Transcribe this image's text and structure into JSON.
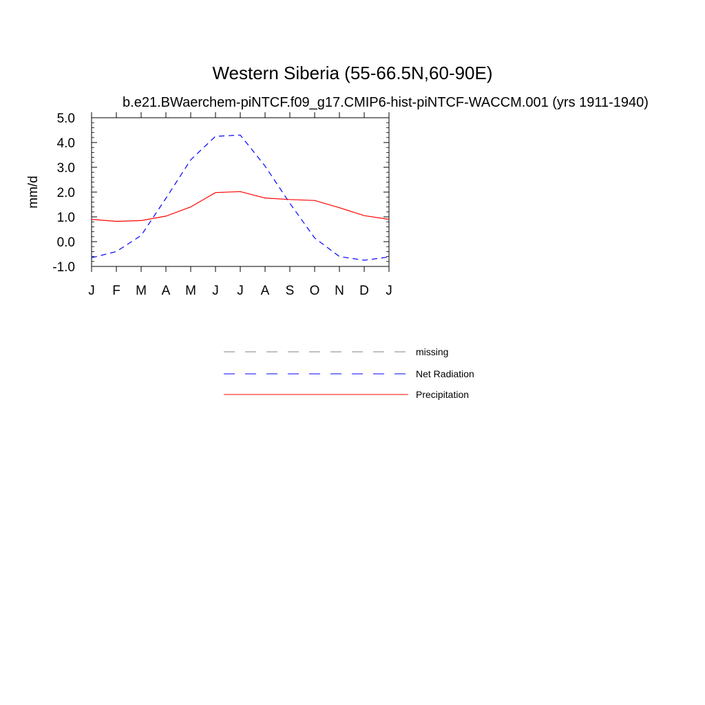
{
  "chart_data": {
    "type": "line",
    "title": "Western Siberia (55-66.5N,60-90E)",
    "subtitle": "b.e21.BWaerchem-piNTCF.f09_g17.CMIP6-hist-piNTCF-WACCM.001 (yrs 1911-1940)",
    "xlabel": "",
    "ylabel": "mm/d",
    "categories": [
      "J",
      "F",
      "M",
      "A",
      "M",
      "J",
      "J",
      "A",
      "S",
      "O",
      "N",
      "D",
      "J"
    ],
    "ylim": [
      -1.0,
      5.0
    ],
    "yticks": [
      "5.0",
      "4.0",
      "3.0",
      "2.0",
      "1.0",
      "0.0",
      "-1.0"
    ],
    "ytick_values": [
      5.0,
      4.0,
      3.0,
      2.0,
      1.0,
      0.0,
      -1.0
    ],
    "grid": false,
    "series": [
      {
        "name": "Net Radiation",
        "color": "#0000ff",
        "dash": "dashed",
        "values": [
          -0.65,
          -0.4,
          0.25,
          1.75,
          3.3,
          4.25,
          4.3,
          3.05,
          1.55,
          0.15,
          -0.6,
          -0.75,
          -0.62
        ]
      },
      {
        "name": "Precipitation",
        "color": "#ff0000",
        "dash": "solid",
        "values": [
          0.9,
          0.82,
          0.85,
          1.03,
          1.4,
          1.98,
          2.02,
          1.76,
          1.7,
          1.66,
          1.37,
          1.05,
          0.9
        ]
      }
    ],
    "legend": {
      "placement": "below",
      "entries": [
        {
          "name": "missing",
          "color": "#808080",
          "dash": "dashed"
        },
        {
          "name": "Net Radiation",
          "color": "#0000ff",
          "dash": "dashed"
        },
        {
          "name": "Precipitation",
          "color": "#ff0000",
          "dash": "solid"
        }
      ]
    }
  }
}
